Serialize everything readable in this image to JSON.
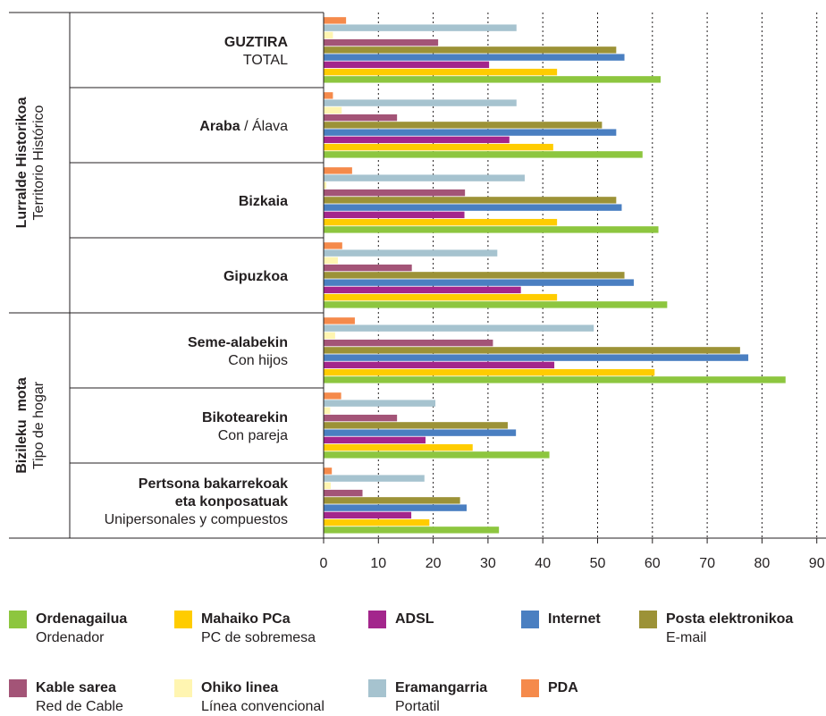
{
  "chart_data": {
    "type": "bar",
    "orientation": "horizontal",
    "xlim": [
      0,
      90
    ],
    "x_ticks": [
      "0",
      "10",
      "20",
      "30",
      "40",
      "50",
      "60",
      "70",
      "80",
      "90"
    ],
    "grid": "vertical-dotted",
    "groups": [
      {
        "name": "Lurralde Historikoa",
        "name_es": "Territorio Histórico",
        "categories": [
          {
            "label_eu": "GUZTIRA",
            "label_es": "TOTAL",
            "style": "stacked"
          },
          {
            "label_eu": "Araba",
            "label_es": "Álava",
            "style": "slash"
          },
          {
            "label_eu": "Bizkaia",
            "label_es": "",
            "style": "stacked"
          },
          {
            "label_eu": "Gipuzkoa",
            "label_es": "",
            "style": "stacked"
          }
        ]
      },
      {
        "name": "Bizileku  mota",
        "name_es": "Tipo de hogar",
        "categories": [
          {
            "label_eu": "Seme-alabekin",
            "label_es": "Con hijos",
            "style": "stacked"
          },
          {
            "label_eu": "Bikotearekin",
            "label_es": "Con pareja",
            "style": "stacked"
          },
          {
            "label_eu": "Pertsona bakarrekoak|eta konposatuak",
            "label_es": "Unipersonales y compuestos",
            "style": "stacked"
          }
        ]
      }
    ],
    "series": [
      {
        "name": "Ordenagailua",
        "name_es": "Ordenador",
        "color": "#8dc63f",
        "values": [
          61.5,
          58.2,
          61.1,
          62.7,
          84.3,
          41.2,
          32.0
        ]
      },
      {
        "name": "Mahaiko PCa",
        "name_es": "PC de sobremesa",
        "color": "#ffcc00",
        "values": [
          42.6,
          41.9,
          42.6,
          42.6,
          60.4,
          27.2,
          19.3
        ]
      },
      {
        "name": "ADSL",
        "name_es": "",
        "color": "#a3268c",
        "values": [
          30.2,
          33.9,
          25.7,
          36.0,
          42.1,
          18.6,
          16.0
        ]
      },
      {
        "name": "Internet",
        "name_es": "",
        "color": "#4a7fc1",
        "values": [
          54.9,
          53.4,
          54.4,
          56.6,
          77.5,
          35.1,
          26.1
        ]
      },
      {
        "name": "Posta elektronikoa",
        "name_es": "E-mail",
        "color": "#9c9237",
        "values": [
          53.4,
          50.8,
          53.4,
          54.9,
          76.0,
          33.6,
          24.9
        ]
      },
      {
        "name": "Kable sarea",
        "name_es": "Red de Cable",
        "color": "#a35477",
        "values": [
          20.9,
          13.4,
          25.8,
          16.1,
          30.9,
          13.4,
          7.1
        ]
      },
      {
        "name": "Ohiko linea",
        "name_es": "Línea convencional",
        "color": "#fff5b1",
        "values": [
          1.7,
          3.3,
          0.5,
          2.6,
          2.1,
          1.2,
          1.3
        ]
      },
      {
        "name": "Eramangarria",
        "name_es": "Portatil",
        "color": "#a6c3cf",
        "values": [
          35.2,
          35.2,
          36.7,
          31.7,
          49.3,
          20.4,
          18.4
        ]
      },
      {
        "name": "PDA",
        "name_es": "",
        "color": "#f58a4b",
        "values": [
          4.1,
          1.7,
          5.2,
          3.4,
          5.7,
          3.2,
          1.5
        ]
      }
    ]
  }
}
